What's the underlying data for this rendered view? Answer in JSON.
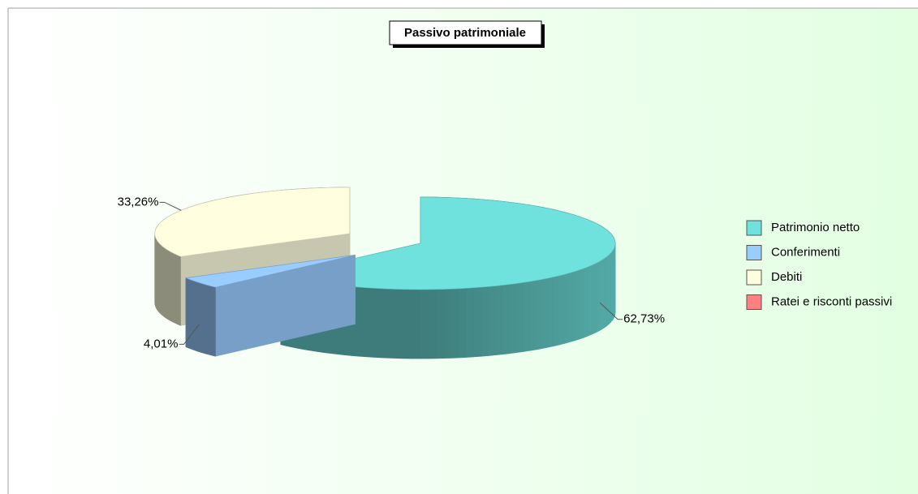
{
  "chart_data": {
    "type": "pie3d",
    "title": "Passivo patrimoniale",
    "categories": [
      "Patrimonio netto",
      "Conferimenti",
      "Debiti",
      "Ratei e risconti passivi"
    ],
    "values": [
      62.73,
      4.01,
      33.26,
      0
    ],
    "value_labels": [
      "62,73%",
      "4,01%",
      "33,26%",
      null
    ],
    "colors": [
      "#6fe2de",
      "#99ccff",
      "#ffffe0",
      "#ff8080"
    ],
    "legend": "right"
  }
}
